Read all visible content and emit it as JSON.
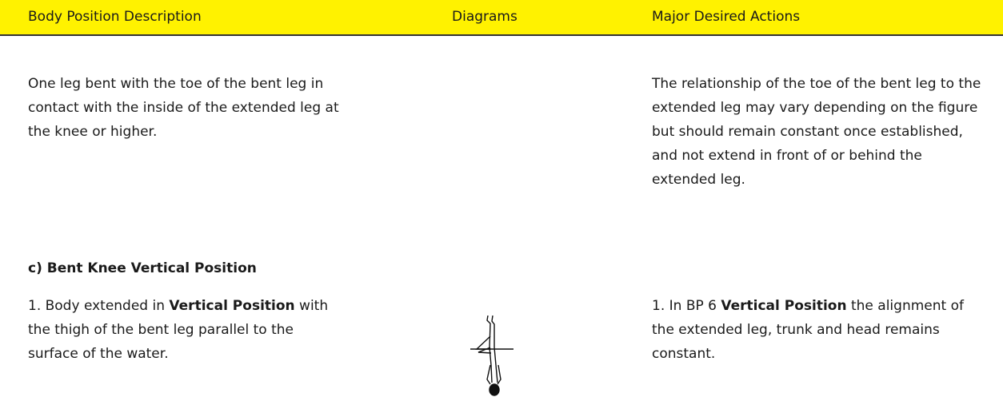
{
  "header": {
    "columns": [
      "Body Position Description",
      "Diagrams",
      "Major Desired Actions"
    ]
  },
  "intro": {
    "description": "One leg bent with the toe of the bent leg in contact with the inside of the extended leg at the knee or higher.",
    "actions": "The relationship of the toe of the bent leg to the extended leg may vary depending on the figure but should remain constant once established, and not extend in front of or behind the extended leg."
  },
  "section": {
    "title": "c) Bent Knee Vertical Position",
    "description": [
      {
        "text": "1. Body extended in "
      },
      {
        "text": "Vertical Position",
        "bold": true
      },
      {
        "text": " with the thigh of the bent leg parallel to the surface of the water."
      }
    ],
    "actions": [
      {
        "text": "1. In BP 6 "
      },
      {
        "text": "Vertical Position",
        "bold": true
      },
      {
        "text": " the alignment of the extended leg, trunk and head remains constant."
      }
    ]
  }
}
